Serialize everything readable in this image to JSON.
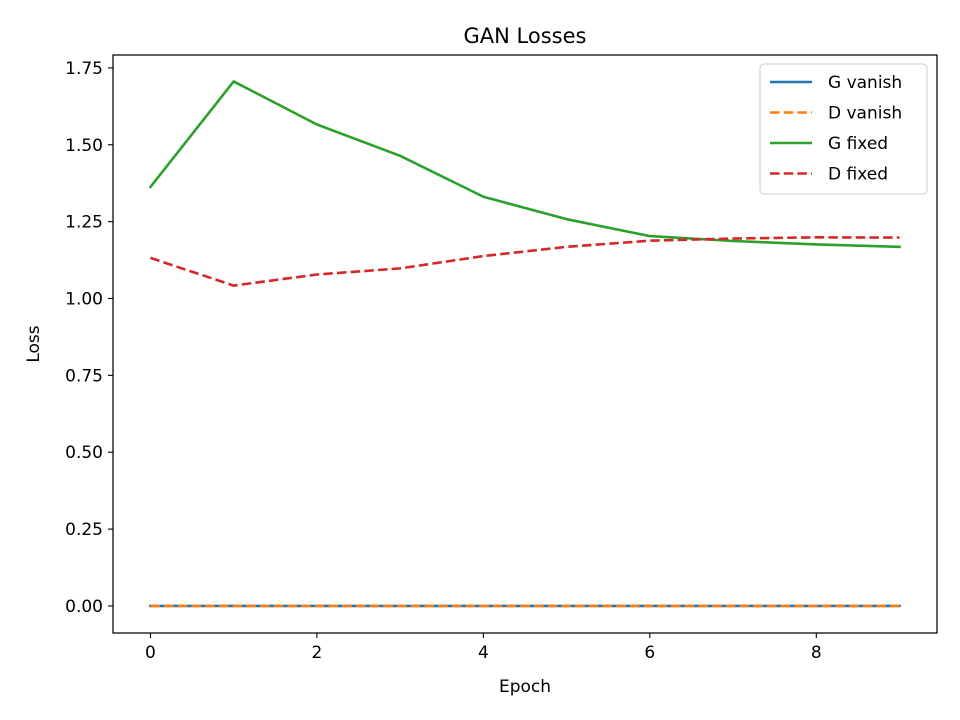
{
  "chart_data": {
    "type": "line",
    "title": "GAN Losses",
    "xlabel": "Epoch",
    "ylabel": "Loss",
    "xlim": [
      -0.45,
      9.45
    ],
    "ylim": [
      -0.088,
      1.792
    ],
    "x": [
      0,
      1,
      2,
      3,
      4,
      5,
      6,
      7,
      8,
      9
    ],
    "xticks": [
      0,
      2,
      4,
      6,
      8
    ],
    "xtick_labels": [
      "0",
      "2",
      "4",
      "6",
      "8"
    ],
    "yticks": [
      0.0,
      0.25,
      0.5,
      0.75,
      1.0,
      1.25,
      1.5,
      1.75
    ],
    "ytick_labels": [
      "0.00",
      "0.25",
      "0.50",
      "0.75",
      "1.00",
      "1.25",
      "1.50",
      "1.75"
    ],
    "grid": false,
    "legend_position": "top-right",
    "series": [
      {
        "name": "G vanish",
        "values": [
          0,
          0,
          0,
          0,
          0,
          0,
          0,
          0,
          0,
          0
        ],
        "color": "#1f77b4",
        "style": "solid"
      },
      {
        "name": "D vanish",
        "values": [
          0,
          0,
          0,
          0,
          0,
          0,
          0,
          0,
          0,
          0
        ],
        "color": "#ff7f0e",
        "style": "dashed"
      },
      {
        "name": "G fixed",
        "values": [
          1.363,
          1.706,
          1.566,
          1.464,
          1.331,
          1.258,
          1.203,
          1.187,
          1.176,
          1.168
        ],
        "color": "#2ca02c",
        "style": "solid"
      },
      {
        "name": "D fixed",
        "values": [
          1.132,
          1.042,
          1.078,
          1.098,
          1.138,
          1.168,
          1.188,
          1.195,
          1.199,
          1.198
        ],
        "color": "#d62728",
        "style": "dashed"
      }
    ]
  }
}
